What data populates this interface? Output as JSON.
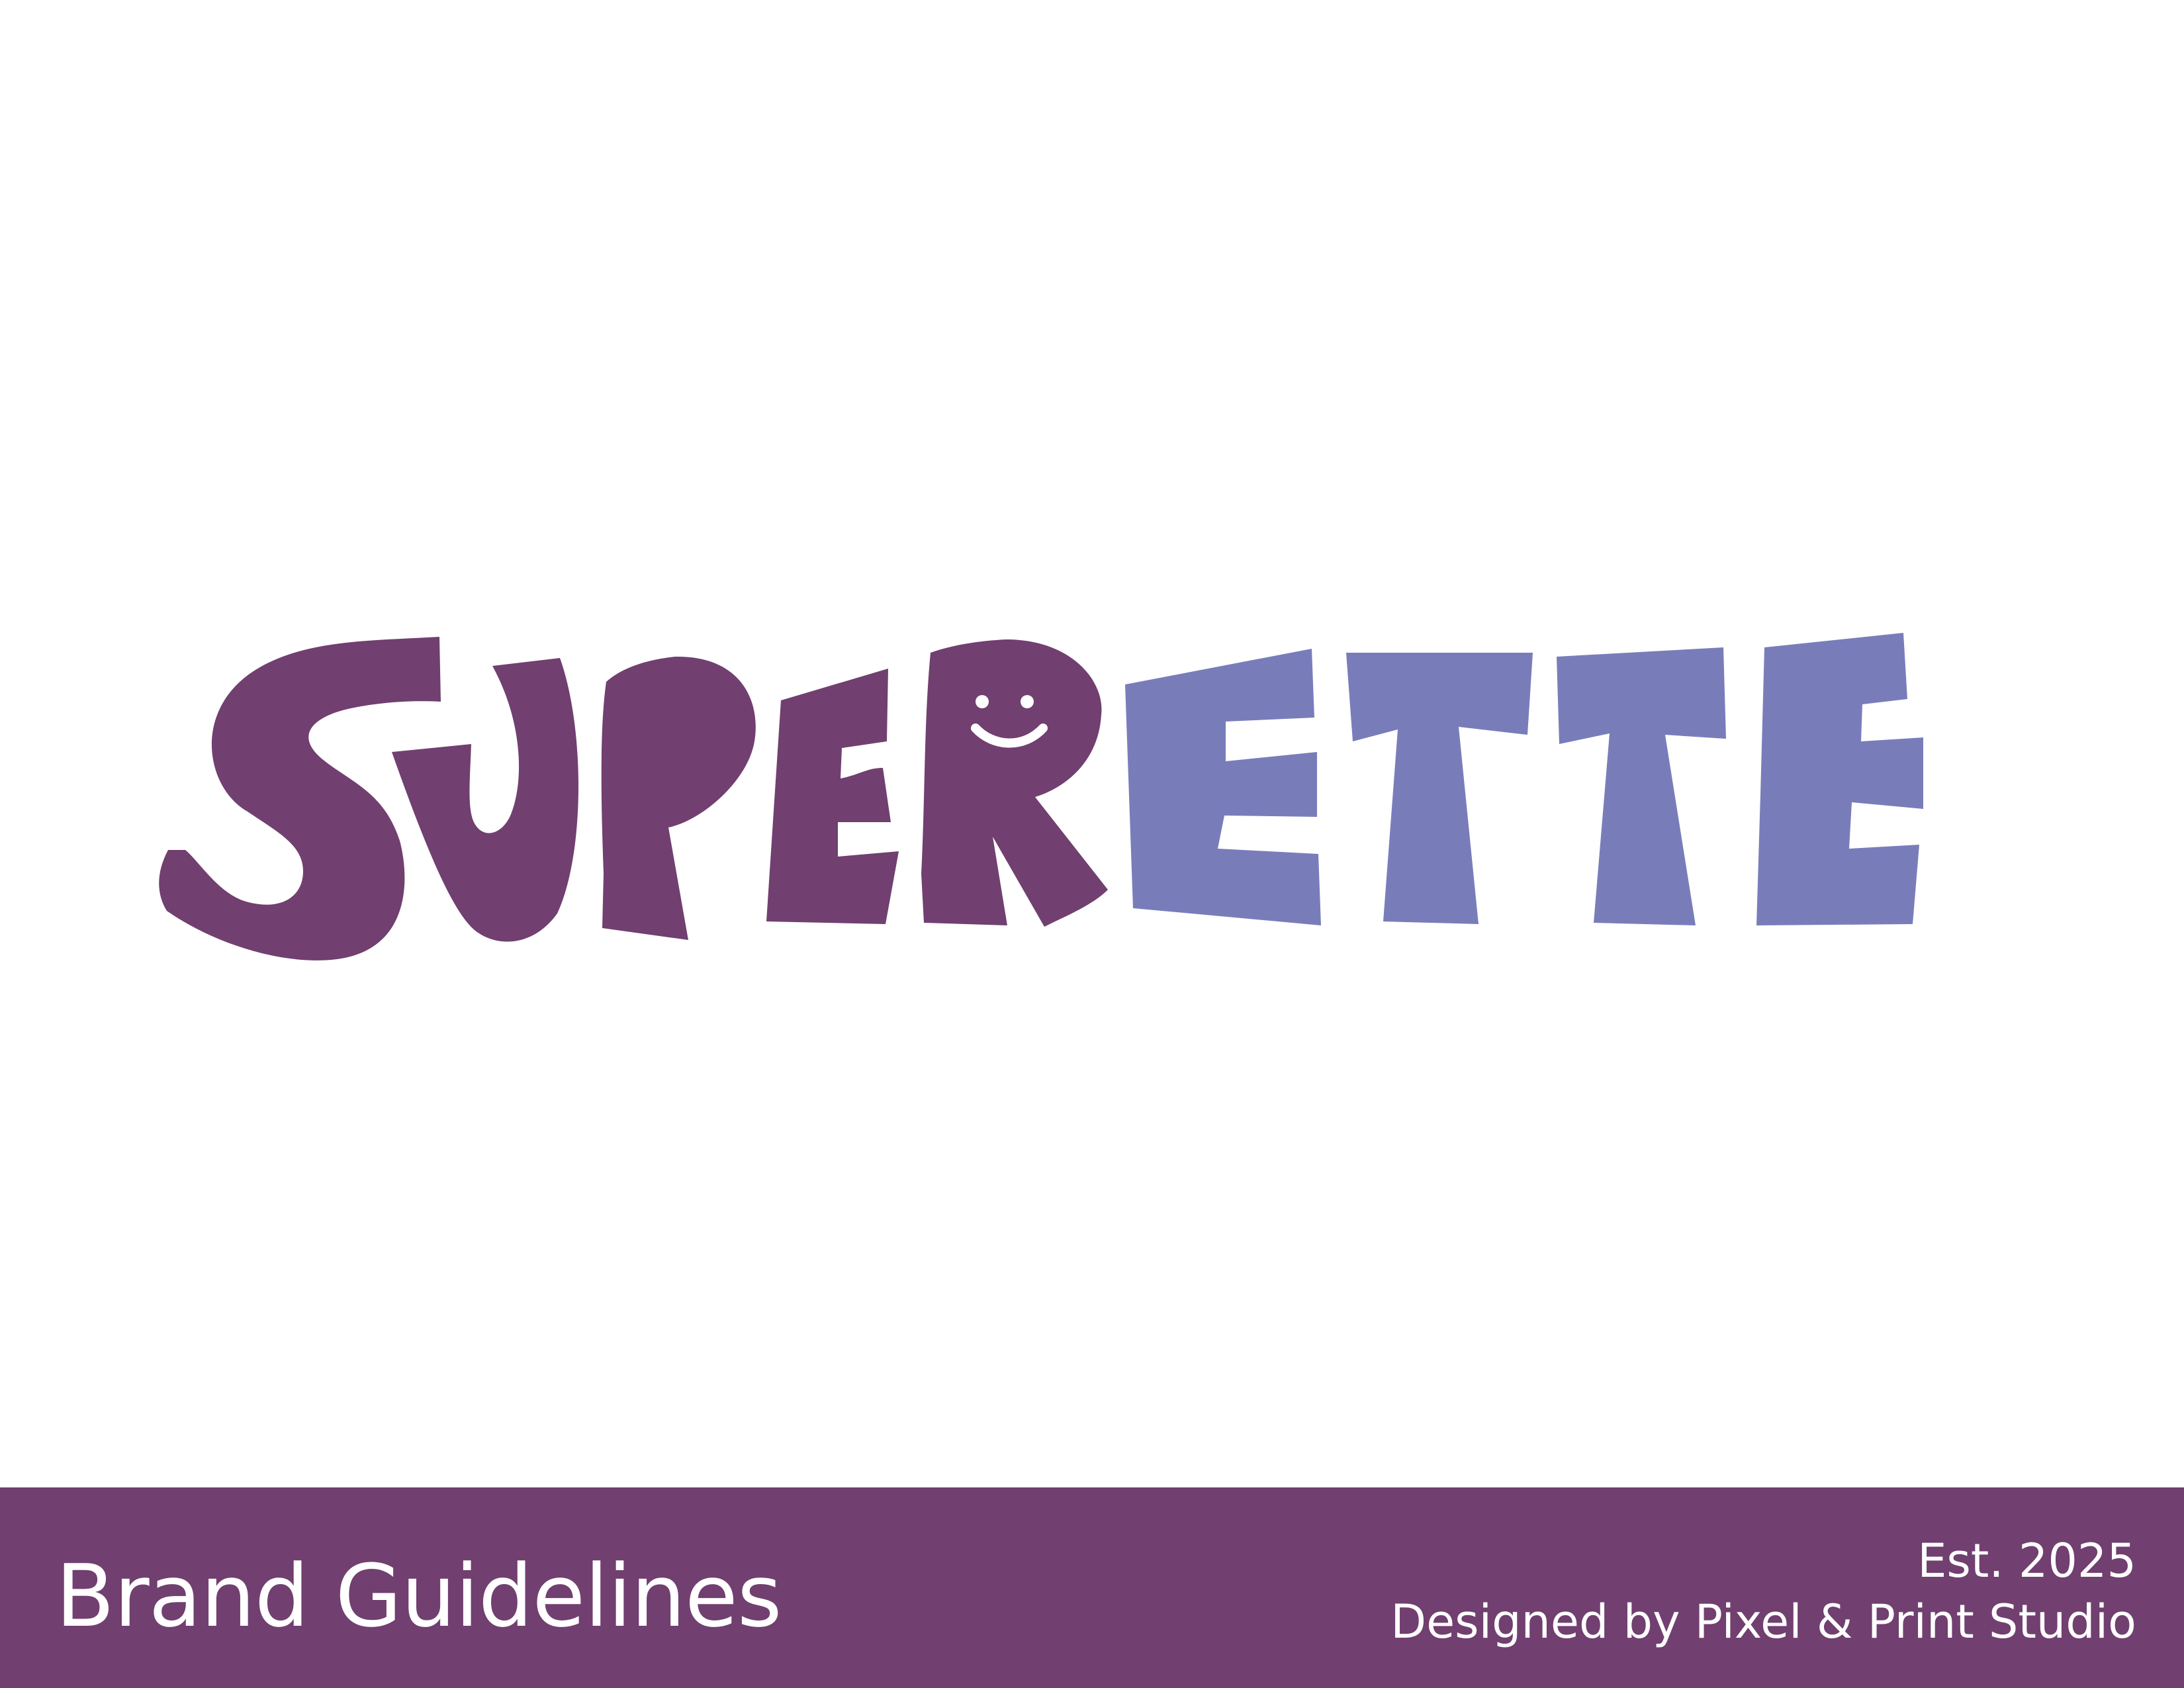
{
  "colors": {
    "background": "#ffffff",
    "brand_purple": "#713f70",
    "brand_periwinkle": "#787dba",
    "text_on_band": "#ffffff"
  },
  "logo": {
    "wordmark": "SUPERETTE",
    "primary_part": "SUPER",
    "secondary_part": "ETTE"
  },
  "footer": {
    "title": "Brand Guidelines",
    "established": "Est. 2025",
    "credit": "Designed by Pixel & Print Studio"
  }
}
